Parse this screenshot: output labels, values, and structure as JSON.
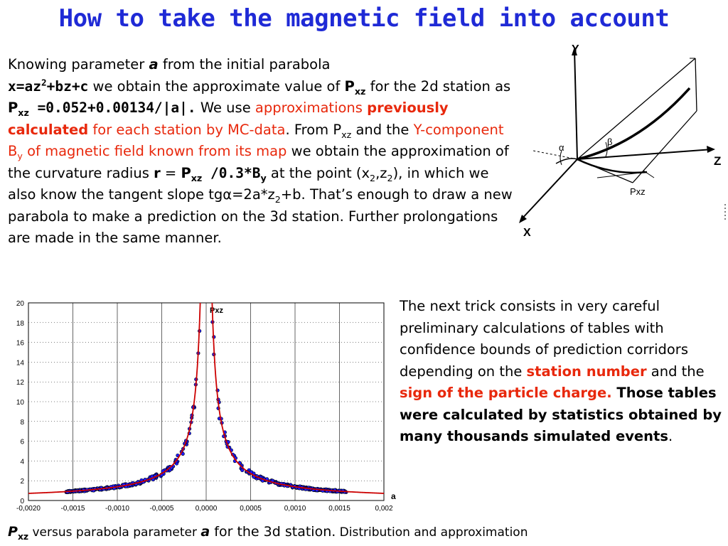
{
  "title": "How to take the magnetic field into account",
  "para1": {
    "t1": "Knowing parameter ",
    "a": "a",
    "t2": " from the initial parabola",
    "eq_x": "x=az",
    "eq_sup": "2",
    "eq_rest": "+bz+c",
    "t3": " we obtain the approximate value of ",
    "p1": "P",
    "p1_sub": "xz",
    "t4": " for the 2d station as ",
    "p2": "P",
    "p2_sub": "xz",
    "eq2": " =0.052+0.00134/|a|.",
    "t5": " We use ",
    "r1": "approximations ",
    "r2": "previously calculated",
    "r3": " for each station by MC-data",
    "t6": ".  From P",
    "p3_sub": "xz",
    "t7": " and the ",
    "r4": "Y-component B",
    "r4_sub": "y",
    "r5": " of magnetic field known from its map",
    "t8": " we obtain the approximation of the curvature radius ",
    "r_eq": "r",
    "t9": " = ",
    "p4": "P",
    "p4_sub": "xz",
    "t10": " /0.3*B",
    "b_sub": "y",
    "t11": "  at the point (x",
    "x2_sub": "2",
    "t12": ",z",
    "z2_sub": "2",
    "t13": "), in which we also know the tangent slope tgα=2a*z",
    "z2b_sub": "2",
    "t14": "+b. That’s enough to draw a new parabola to make a prediction on the 3d station. Further prolongations are made in the same manner."
  },
  "para2": {
    "t1": "The next trick consists in very careful preliminary calculations of tables with confidence bounds of prediction corridors depending on the ",
    "r1": "station number",
    "t2": " and the ",
    "r2": "sign of the particle charge.",
    "t3": " Those tables were calculated by statistics obtained by many thousands simulated events",
    "t4": "."
  },
  "caption": {
    "p": "P",
    "p_sub": "xz",
    "t1": " versus parabola parameter ",
    "a": "a",
    "t2": " for the 3d station.",
    "t3": " Distribution and approximation"
  },
  "diagram": {
    "y_axis": "Y",
    "z_axis": "Z",
    "x_axis": "X",
    "pxz": "Pxz",
    "alpha": "α",
    "beta": "β"
  },
  "chart_data": {
    "type": "scatter",
    "x_label": "a",
    "curve_label": "Pxz",
    "x_ticks": [
      "-0,0020",
      "-0,0015",
      "-0,0010",
      "-0,0005",
      "0,0000",
      "0,0005",
      "0,0010",
      "0,0015",
      "0,002"
    ],
    "y_ticks": [
      "0",
      "2",
      "4",
      "6",
      "8",
      "10",
      "12",
      "14",
      "16",
      "18",
      "20"
    ],
    "xlim": [
      -0.002,
      0.002
    ],
    "ylim": [
      0,
      20
    ],
    "fit": {
      "formula": "Pxz = 0.052 + 0.00134/|a|",
      "intercept": 0.052,
      "coef": 0.00134
    },
    "points_range": [
      -0.00158,
      0.00158
    ],
    "colors": {
      "fit": "#cc0000",
      "points": "#1a1aff",
      "point_edge": "#000000"
    }
  }
}
